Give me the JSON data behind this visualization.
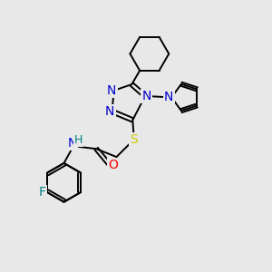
{
  "bg_color": "#e8e8e8",
  "atom_colors": {
    "N": "#0000cc",
    "O": "#ff0000",
    "S": "#cccc00",
    "F": "#008080",
    "C": "#000000",
    "H": "#008080"
  },
  "bond_color": "#000000",
  "figsize": [
    3.0,
    3.0
  ],
  "dpi": 100,
  "xlim": [
    0,
    10
  ],
  "ylim": [
    0,
    10
  ]
}
